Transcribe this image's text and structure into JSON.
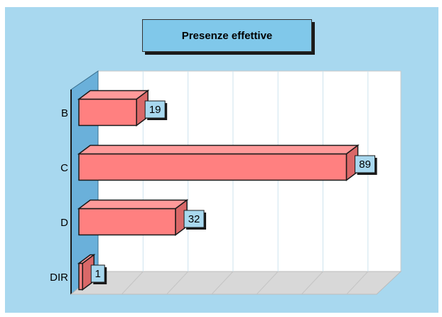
{
  "chart_data": {
    "type": "bar",
    "orientation": "horizontal",
    "style": "3d",
    "title": "Presenze effettive",
    "categories": [
      "B",
      "C",
      "D",
      "DIR"
    ],
    "values": [
      19,
      89,
      32,
      1
    ],
    "xlim": [
      0,
      100
    ],
    "grid": true,
    "data_labels": true,
    "colors": {
      "bar": "#ff8080",
      "background": "#a8d8ef",
      "title_box": "#80c8ea",
      "wall": "#6ab0da"
    }
  }
}
